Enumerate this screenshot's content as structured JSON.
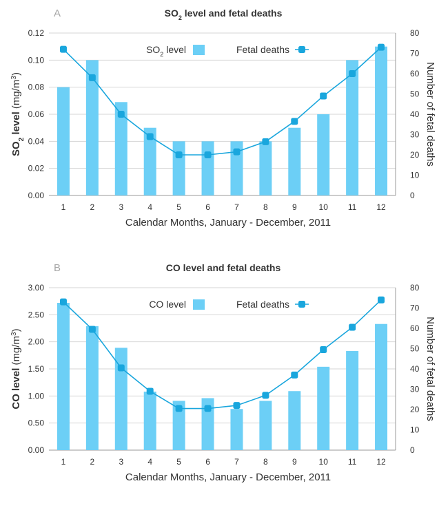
{
  "colors": {
    "bar": "#6ccff6",
    "line": "#19a6dd",
    "grid": "#d4d4d4"
  },
  "chart_data": [
    {
      "panel": "A",
      "type": "bar",
      "title": {
        "main": "SO",
        "sub": "2",
        "rest": " level and fetal deaths"
      },
      "xlabel": "Calendar Months, January - December, 2011",
      "ylabel": {
        "bold": "SO",
        "sub": "2",
        "bold_rest": " level",
        "unit": " (mg/m",
        "sup": "3",
        "close": ")"
      },
      "y2label": "Number of fetal deaths",
      "categories": [
        "1",
        "2",
        "3",
        "4",
        "5",
        "6",
        "7",
        "8",
        "9",
        "10",
        "11",
        "12"
      ],
      "ylim": [
        0,
        0.12
      ],
      "yticks": [
        "0.00",
        "0.02",
        "0.04",
        "0.06",
        "0.08",
        "0.10",
        "0.12"
      ],
      "y2lim": [
        0,
        80
      ],
      "y2ticks": [
        "0",
        "10",
        "20",
        "30",
        "40",
        "50",
        "60",
        "70",
        "80"
      ],
      "grid": true,
      "legend_position": "top-center",
      "series": [
        {
          "name": "SO2 level",
          "legend": {
            "main": "SO",
            "sub": "2",
            "rest": " level"
          },
          "kind": "bar",
          "axis": "left",
          "values": [
            0.08,
            0.1,
            0.069,
            0.05,
            0.04,
            0.04,
            0.04,
            0.04,
            0.05,
            0.06,
            0.1,
            0.11
          ]
        },
        {
          "name": "Fetal deaths",
          "legend": {
            "main": "Fetal deaths"
          },
          "kind": "line",
          "axis": "right",
          "values": [
            72,
            58,
            40,
            29,
            20,
            20,
            21.5,
            26.5,
            36.5,
            49,
            60,
            73
          ]
        }
      ]
    },
    {
      "panel": "B",
      "type": "bar",
      "title": {
        "main": "CO level and fetal deaths"
      },
      "xlabel": "Calendar Months, January - December, 2011",
      "ylabel": {
        "bold": "CO level",
        "unit": " (mg/m",
        "sup": "3",
        "close": ")"
      },
      "y2label": "Number of fetal deaths",
      "categories": [
        "1",
        "2",
        "3",
        "4",
        "5",
        "6",
        "7",
        "8",
        "9",
        "10",
        "11",
        "12"
      ],
      "ylim": [
        0,
        3.0
      ],
      "yticks": [
        "0.00",
        "0.50",
        "1.00",
        "1.50",
        "2.00",
        "2.50",
        "3.00"
      ],
      "y2lim": [
        0,
        80
      ],
      "y2ticks": [
        "0",
        "10",
        "20",
        "30",
        "40",
        "50",
        "60",
        "70",
        "80"
      ],
      "grid": true,
      "legend_position": "top-center",
      "series": [
        {
          "name": "CO level",
          "legend": {
            "main": "CO level"
          },
          "kind": "bar",
          "axis": "left",
          "values": [
            2.72,
            2.29,
            1.89,
            1.08,
            0.91,
            0.96,
            0.76,
            0.91,
            1.09,
            1.54,
            1.83,
            2.33
          ]
        },
        {
          "name": "Fetal deaths",
          "legend": {
            "main": "Fetal deaths"
          },
          "kind": "line",
          "axis": "right",
          "values": [
            73,
            59.5,
            40.5,
            29,
            20.5,
            20.5,
            22,
            27,
            37,
            49.5,
            60.5,
            74
          ]
        }
      ]
    }
  ]
}
